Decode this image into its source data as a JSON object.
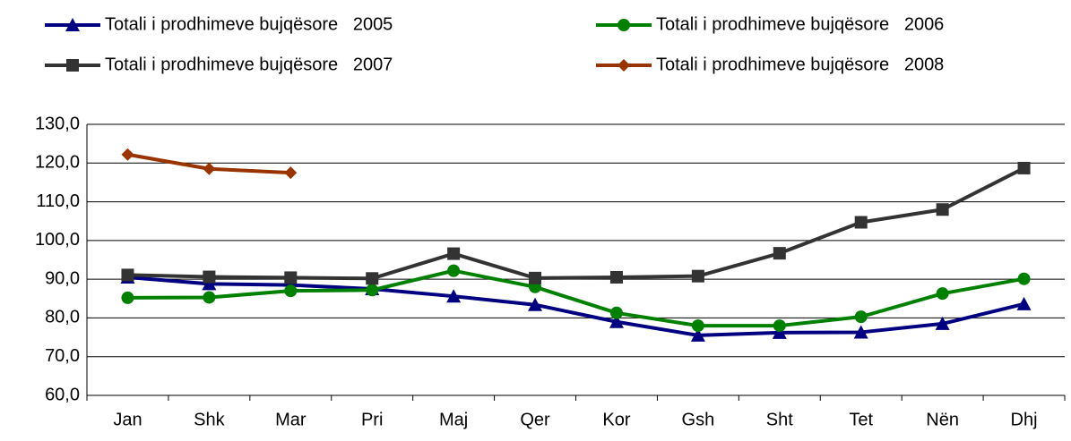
{
  "chart_data": {
    "type": "line",
    "categories": [
      "Jan",
      "Shk",
      "Mar",
      "Pri",
      "Maj",
      "Qer",
      "Kor",
      "Gsh",
      "Sht",
      "Tet",
      "Nën",
      "Dhj"
    ],
    "series": [
      {
        "name": "Totali i prodhimeve bujqësore   2005",
        "color": "#000080",
        "marker": "triangle",
        "values": [
          90.5,
          88.8,
          88.5,
          87.5,
          85.6,
          83.4,
          79.0,
          75.5,
          76.2,
          76.3,
          78.5,
          83.6
        ]
      },
      {
        "name": "Totali i prodhimeve bujqësore   2006",
        "color": "#008000",
        "marker": "circle",
        "values": [
          85.2,
          85.3,
          87.0,
          87.2,
          92.2,
          88.0,
          81.3,
          78.0,
          78.0,
          80.3,
          86.3,
          90.1
        ]
      },
      {
        "name": "Totali i prodhimeve bujqësore   2007",
        "color": "#333333",
        "marker": "square",
        "values": [
          91.1,
          90.6,
          90.4,
          90.2,
          96.6,
          90.3,
          90.5,
          90.8,
          96.7,
          104.7,
          108.0,
          118.7
        ]
      },
      {
        "name": "Totali i prodhimeve bujqësore   2008",
        "color": "#993300",
        "marker": "diamond",
        "values": [
          122.2,
          118.5,
          117.5,
          null,
          null,
          null,
          null,
          null,
          null,
          null,
          null,
          null
        ]
      }
    ],
    "ylim": [
      60,
      130
    ],
    "yticks": [
      {
        "value": 60,
        "label": "60,0"
      },
      {
        "value": 70,
        "label": "70,0"
      },
      {
        "value": 80,
        "label": "80,0"
      },
      {
        "value": 90,
        "label": "90,0"
      },
      {
        "value": 100,
        "label": "100,0"
      },
      {
        "value": 110,
        "label": "110,0"
      },
      {
        "value": 120,
        "label": "120,0"
      },
      {
        "value": 130,
        "label": "130,0"
      }
    ],
    "grid": true,
    "legend": "top"
  }
}
